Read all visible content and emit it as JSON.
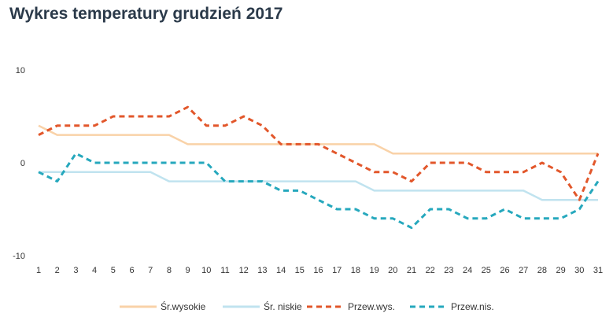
{
  "chart_data": {
    "type": "line",
    "title": "Wykres temperatury grudzień 2017",
    "xlabel": "",
    "ylabel": "",
    "x": [
      1,
      2,
      3,
      4,
      5,
      6,
      7,
      8,
      9,
      10,
      11,
      12,
      13,
      14,
      15,
      16,
      17,
      18,
      19,
      20,
      21,
      22,
      23,
      24,
      25,
      26,
      27,
      28,
      29,
      30,
      31
    ],
    "ylim": [
      -10,
      10
    ],
    "yticks": [
      10,
      0,
      -10
    ],
    "grid": false,
    "legend": "bottom",
    "series": [
      {
        "name": "Śr.wysokie",
        "color": "#f9d2a8",
        "dashed": false,
        "values": [
          4,
          3,
          3,
          3,
          3,
          3,
          3,
          3,
          2,
          2,
          2,
          2,
          2,
          2,
          2,
          2,
          2,
          2,
          2,
          1,
          1,
          1,
          1,
          1,
          1,
          1,
          1,
          1,
          1,
          1,
          1
        ]
      },
      {
        "name": "Śr. niskie",
        "color": "#c0e3ef",
        "dashed": false,
        "values": [
          -1,
          -1,
          -1,
          -1,
          -1,
          -1,
          -1,
          -2,
          -2,
          -2,
          -2,
          -2,
          -2,
          -2,
          -2,
          -2,
          -2,
          -2,
          -3,
          -3,
          -3,
          -3,
          -3,
          -3,
          -3,
          -3,
          -3,
          -4,
          -4,
          -4,
          -4
        ]
      },
      {
        "name": "Przew.wys.",
        "color": "#e2572b",
        "dashed": true,
        "values": [
          3,
          4,
          4,
          4,
          5,
          5,
          5,
          5,
          6,
          4,
          4,
          5,
          4,
          2,
          2,
          2,
          1,
          0,
          -1,
          -1,
          -2,
          0,
          0,
          0,
          -1,
          -1,
          -1,
          0,
          -1,
          -4,
          1
        ]
      },
      {
        "name": "Przew.nis.",
        "color": "#26a8bd",
        "dashed": true,
        "values": [
          -1,
          -2,
          1,
          0,
          0,
          0,
          0,
          0,
          0,
          0,
          -2,
          -2,
          -2,
          -3,
          -3,
          -4,
          -5,
          -5,
          -6,
          -6,
          -7,
          -5,
          -5,
          -6,
          -6,
          -5,
          -6,
          -6,
          -6,
          -5,
          -2
        ]
      }
    ]
  }
}
